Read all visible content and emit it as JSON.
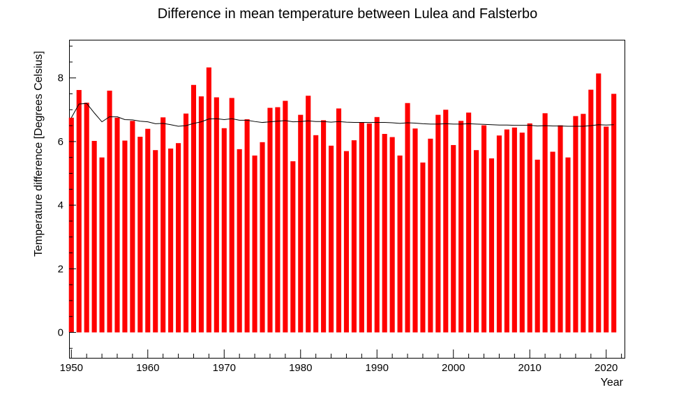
{
  "chart_data": {
    "type": "bar",
    "title": "Difference in mean temperature between Lulea and Falsterbo",
    "xlabel": "Year",
    "ylabel": "Temperature difference [Degrees Celsius]",
    "xlim": [
      1949.7,
      2022.4
    ],
    "ylim": [
      -0.8,
      9.2
    ],
    "grid": false,
    "legend": "none",
    "xticks": [
      1950,
      1960,
      1970,
      1980,
      1990,
      2000,
      2010,
      2020
    ],
    "yticks": [
      0,
      2,
      4,
      6,
      8
    ],
    "bar_color": "#ff0000",
    "line_color": "#000000",
    "x": [
      1950,
      1951,
      1952,
      1953,
      1954,
      1955,
      1956,
      1957,
      1958,
      1959,
      1960,
      1961,
      1962,
      1963,
      1964,
      1965,
      1966,
      1967,
      1968,
      1969,
      1970,
      1971,
      1972,
      1973,
      1974,
      1975,
      1976,
      1977,
      1978,
      1979,
      1980,
      1981,
      1982,
      1983,
      1984,
      1985,
      1986,
      1987,
      1988,
      1989,
      1990,
      1991,
      1992,
      1993,
      1994,
      1995,
      1996,
      1997,
      1998,
      1999,
      2000,
      2001,
      2002,
      2003,
      2004,
      2005,
      2006,
      2007,
      2008,
      2009,
      2010,
      2011,
      2012,
      2013,
      2014,
      2015,
      2016,
      2017,
      2018,
      2019,
      2020,
      2021
    ],
    "series": [
      {
        "type": "bar",
        "values": [
          6.75,
          7.62,
          7.22,
          6.02,
          5.5,
          7.6,
          6.75,
          6.03,
          6.65,
          6.15,
          6.4,
          5.73,
          6.76,
          5.78,
          5.95,
          6.88,
          7.78,
          7.42,
          8.33,
          7.39,
          6.42,
          7.37,
          5.76,
          6.7,
          5.56,
          5.98,
          7.06,
          7.08,
          7.28,
          5.38,
          6.84,
          7.44,
          6.2,
          6.67,
          5.87,
          7.04,
          5.7,
          6.04,
          6.61,
          6.57,
          6.77,
          6.24,
          6.14,
          5.56,
          7.21,
          6.41,
          5.34,
          6.09,
          6.84,
          7.0,
          5.89,
          6.65,
          6.91,
          5.73,
          6.51,
          5.47,
          6.19,
          6.38,
          6.44,
          6.28,
          6.57,
          5.43,
          6.89,
          5.68,
          6.51,
          5.5,
          6.8,
          6.87,
          7.63,
          8.14,
          6.47,
          7.5
        ]
      },
      {
        "type": "line",
        "values": [
          6.75,
          7.18,
          7.2,
          6.9,
          6.62,
          6.78,
          6.78,
          6.69,
          6.68,
          6.64,
          6.62,
          6.56,
          6.57,
          6.53,
          6.48,
          6.5,
          6.57,
          6.62,
          6.71,
          6.72,
          6.69,
          6.72,
          6.67,
          6.67,
          6.63,
          6.6,
          6.62,
          6.64,
          6.66,
          6.62,
          6.63,
          6.65,
          6.63,
          6.63,
          6.61,
          6.63,
          6.61,
          6.6,
          6.6,
          6.6,
          6.6,
          6.6,
          6.59,
          6.57,
          6.59,
          6.58,
          6.56,
          6.55,
          6.55,
          6.56,
          6.55,
          6.55,
          6.56,
          6.55,
          6.54,
          6.53,
          6.52,
          6.52,
          6.51,
          6.51,
          6.51,
          6.49,
          6.5,
          6.49,
          6.49,
          6.48,
          6.48,
          6.48,
          6.5,
          6.53,
          6.52,
          6.53
        ]
      }
    ]
  }
}
